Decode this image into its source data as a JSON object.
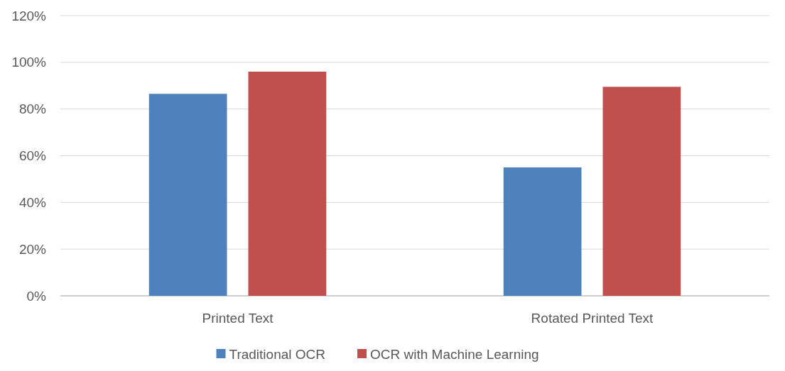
{
  "chart_data": {
    "type": "bar",
    "categories": [
      "Printed Text",
      "Rotated Printed Text"
    ],
    "series": [
      {
        "name": "Traditional OCR",
        "color": "#4f81bd",
        "values": [
          86.5,
          55
        ]
      },
      {
        "name": "OCR with Machine Learning",
        "color": "#c0504d",
        "values": [
          96,
          89.5
        ]
      }
    ],
    "ylim": [
      0,
      120
    ],
    "yticks": [
      {
        "value": 0,
        "label": "0%"
      },
      {
        "value": 20,
        "label": "20%"
      },
      {
        "value": 40,
        "label": "40%"
      },
      {
        "value": 60,
        "label": "60%"
      },
      {
        "value": 80,
        "label": "80%"
      },
      {
        "value": 100,
        "label": "100%"
      },
      {
        "value": 120,
        "label": "120%"
      }
    ],
    "grid": "y",
    "legend": "bottom"
  }
}
